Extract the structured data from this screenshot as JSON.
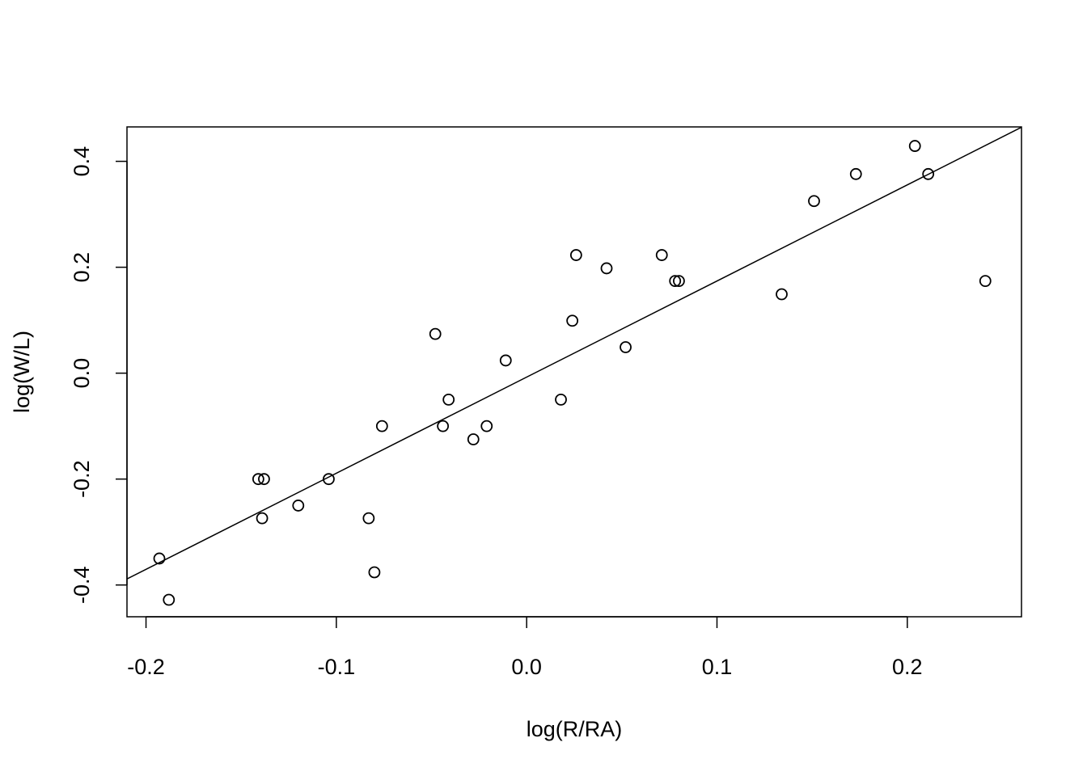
{
  "chart_data": {
    "type": "scatter",
    "title": "",
    "xlabel": "log(R/RA)",
    "ylabel": "log(W/L)",
    "xlim": [
      -0.21,
      0.26
    ],
    "ylim": [
      -0.46,
      0.465
    ],
    "x_ticks": [
      -0.2,
      -0.1,
      0.0,
      0.1,
      0.2
    ],
    "x_tick_labels": [
      "-0.2",
      "-0.1",
      "0.0",
      "0.1",
      "0.2"
    ],
    "y_ticks": [
      -0.4,
      -0.2,
      0.0,
      0.2,
      0.4
    ],
    "y_tick_labels": [
      "-0.4",
      "-0.2",
      "0.0",
      "0.2",
      "0.4"
    ],
    "grid": false,
    "legend": "none",
    "points": [
      {
        "x": -0.193,
        "y": -0.35
      },
      {
        "x": -0.188,
        "y": -0.428
      },
      {
        "x": -0.141,
        "y": -0.2
      },
      {
        "x": -0.138,
        "y": -0.2
      },
      {
        "x": -0.139,
        "y": -0.274
      },
      {
        "x": -0.12,
        "y": -0.25
      },
      {
        "x": -0.104,
        "y": -0.2
      },
      {
        "x": -0.083,
        "y": -0.274
      },
      {
        "x": -0.08,
        "y": -0.376
      },
      {
        "x": -0.076,
        "y": -0.1
      },
      {
        "x": -0.048,
        "y": 0.074
      },
      {
        "x": -0.044,
        "y": -0.1
      },
      {
        "x": -0.041,
        "y": -0.05
      },
      {
        "x": -0.028,
        "y": -0.125
      },
      {
        "x": -0.021,
        "y": -0.1
      },
      {
        "x": -0.011,
        "y": 0.024
      },
      {
        "x": 0.018,
        "y": -0.05
      },
      {
        "x": 0.024,
        "y": 0.099
      },
      {
        "x": 0.026,
        "y": 0.223
      },
      {
        "x": 0.042,
        "y": 0.198
      },
      {
        "x": 0.052,
        "y": 0.049
      },
      {
        "x": 0.071,
        "y": 0.223
      },
      {
        "x": 0.078,
        "y": 0.174
      },
      {
        "x": 0.08,
        "y": 0.174
      },
      {
        "x": 0.134,
        "y": 0.149
      },
      {
        "x": 0.151,
        "y": 0.325
      },
      {
        "x": 0.173,
        "y": 0.376
      },
      {
        "x": 0.204,
        "y": 0.429
      },
      {
        "x": 0.211,
        "y": 0.376
      },
      {
        "x": 0.241,
        "y": 0.174
      }
    ],
    "fit_line": {
      "intercept": -0.0075,
      "slope": 1.815
    },
    "colors": {
      "points": "#000000",
      "line": "#000000",
      "frame": "#000000"
    }
  }
}
